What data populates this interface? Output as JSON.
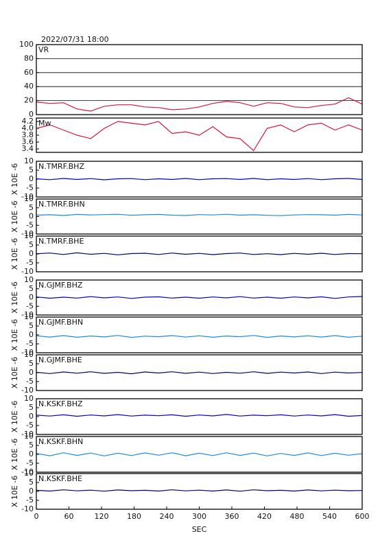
{
  "chart_data": [
    {
      "type": "line",
      "title": "2022/07/31 18:00",
      "xlim": [
        0,
        600
      ],
      "ylim": [
        0,
        100
      ],
      "yticks": [
        0,
        20,
        40,
        60,
        80,
        100
      ],
      "grid": true,
      "x": [
        0,
        25,
        50,
        75,
        100,
        125,
        150,
        175,
        200,
        225,
        250,
        275,
        300,
        325,
        350,
        375,
        400,
        425,
        450,
        475,
        500,
        525,
        550,
        575,
        600
      ],
      "series": [
        {
          "name": "VR",
          "color": "#dc143c",
          "values": [
            18,
            16,
            17,
            8,
            5,
            12,
            14,
            14,
            11,
            10,
            7,
            8,
            11,
            16,
            19,
            17,
            12,
            17,
            16,
            11,
            10,
            13,
            15,
            24,
            15
          ]
        }
      ]
    },
    {
      "type": "line",
      "xlim": [
        0,
        600
      ],
      "ylim": [
        3.3,
        4.3
      ],
      "yticks": [
        3.4,
        3.6,
        3.8,
        {
          "value": 4,
          "label": "4.0"
        },
        4.2
      ],
      "x": [
        0,
        25,
        50,
        75,
        100,
        125,
        150,
        175,
        200,
        225,
        250,
        275,
        300,
        325,
        350,
        375,
        400,
        425,
        450,
        475,
        500,
        525,
        550,
        575,
        600
      ],
      "series": [
        {
          "name": "Mw",
          "color": "#dc143c",
          "values": [
            4.0,
            4.1,
            3.95,
            3.8,
            3.7,
            4.0,
            4.2,
            4.15,
            4.1,
            4.2,
            3.85,
            3.9,
            3.8,
            4.05,
            3.75,
            3.7,
            3.35,
            4.0,
            4.1,
            3.9,
            4.1,
            4.15,
            3.95,
            4.1,
            3.95
          ]
        }
      ]
    },
    {
      "type": "line",
      "xlim": [
        0,
        600
      ],
      "ylim": [
        -10,
        10
      ],
      "yticks": [
        -10,
        -5,
        0,
        5,
        10
      ],
      "ylabel": "X 10E -6",
      "x": [
        0,
        25,
        50,
        75,
        100,
        125,
        150,
        175,
        200,
        225,
        250,
        275,
        300,
        325,
        350,
        375,
        400,
        425,
        450,
        475,
        500,
        525,
        550,
        575,
        600
      ],
      "series": [
        {
          "name": "N.TMRF.BHZ",
          "color": "#0000cd",
          "values": [
            0.2,
            -0.3,
            0.4,
            -0.2,
            0.3,
            -0.4,
            0.2,
            0.3,
            -0.3,
            0.2,
            -0.2,
            0.4,
            -0.3,
            0.2,
            0.3,
            -0.2,
            0.4,
            -0.3,
            0.2,
            -0.2,
            0.3,
            -0.3,
            0.2,
            0.4,
            -0.2
          ]
        }
      ]
    },
    {
      "type": "line",
      "xlim": [
        0,
        600
      ],
      "ylim": [
        -10,
        10
      ],
      "yticks": [
        -10,
        -5,
        0,
        5,
        10
      ],
      "ylabel": "X 10E -6",
      "x": [
        0,
        25,
        50,
        75,
        100,
        125,
        150,
        175,
        200,
        225,
        250,
        275,
        300,
        325,
        350,
        375,
        400,
        425,
        450,
        475,
        500,
        525,
        550,
        575,
        600
      ],
      "series": [
        {
          "name": "N.TMRF.BHN",
          "color": "#1e88e5",
          "values": [
            0.8,
            1.0,
            0.6,
            1.2,
            0.9,
            1.1,
            1.3,
            0.7,
            1.0,
            1.2,
            0.8,
            0.6,
            1.1,
            0.9,
            1.3,
            0.8,
            1.0,
            0.7,
            0.5,
            0.9,
            1.1,
            1.0,
            0.8,
            1.2,
            0.9
          ]
        }
      ]
    },
    {
      "type": "line",
      "xlim": [
        0,
        600
      ],
      "ylim": [
        -10,
        10
      ],
      "yticks": [
        -10,
        -5,
        0,
        5,
        10
      ],
      "ylabel": "X 10E -6",
      "x": [
        0,
        25,
        50,
        75,
        100,
        125,
        150,
        175,
        200,
        225,
        250,
        275,
        300,
        325,
        350,
        375,
        400,
        425,
        450,
        475,
        500,
        525,
        550,
        575,
        600
      ],
      "series": [
        {
          "name": "N.TMRF.BHE",
          "color": "#000066",
          "values": [
            0.1,
            0.5,
            -0.3,
            0.6,
            -0.2,
            0.3,
            -0.5,
            0.2,
            0.4,
            -0.3,
            0.5,
            -0.2,
            0.3,
            -0.4,
            0.2,
            0.5,
            -0.3,
            0.1,
            -0.4,
            0.3,
            -0.2,
            0.4,
            -0.3,
            0.2,
            0.1
          ]
        }
      ]
    },
    {
      "type": "line",
      "xlim": [
        0,
        600
      ],
      "ylim": [
        -10,
        10
      ],
      "yticks": [
        -10,
        -5,
        0,
        5,
        10
      ],
      "ylabel": "X 10E -6",
      "x": [
        0,
        25,
        50,
        75,
        100,
        125,
        150,
        175,
        200,
        225,
        250,
        275,
        300,
        325,
        350,
        375,
        400,
        425,
        450,
        475,
        500,
        525,
        550,
        575,
        600
      ],
      "series": [
        {
          "name": "N.GJMF.BHZ",
          "color": "#0000cd",
          "values": [
            0.3,
            -0.4,
            0.2,
            -0.3,
            0.5,
            -0.2,
            0.3,
            -0.5,
            0.2,
            0.4,
            -0.3,
            0.2,
            -0.4,
            0.3,
            -0.2,
            0.5,
            -0.3,
            0.2,
            -0.4,
            0.3,
            -0.2,
            0.4,
            -0.5,
            0.3,
            0.6
          ]
        }
      ]
    },
    {
      "type": "line",
      "xlim": [
        0,
        600
      ],
      "ylim": [
        -10,
        10
      ],
      "yticks": [
        -10,
        -5,
        0,
        5,
        10
      ],
      "ylabel": "X 10E -6",
      "x": [
        0,
        25,
        50,
        75,
        100,
        125,
        150,
        175,
        200,
        225,
        250,
        275,
        300,
        325,
        350,
        375,
        400,
        425,
        450,
        475,
        500,
        525,
        550,
        575,
        600
      ],
      "series": [
        {
          "name": "N.GJMF.BHN",
          "color": "#1e88e5",
          "values": [
            -0.5,
            -1.2,
            -0.4,
            -1.3,
            -0.6,
            -1.1,
            -0.3,
            -1.4,
            -0.7,
            -1.0,
            -0.4,
            -1.2,
            -0.5,
            -1.3,
            -0.6,
            -1.0,
            -0.3,
            -1.4,
            -0.6,
            -1.1,
            -0.5,
            -1.2,
            -0.4,
            -1.3,
            -0.7
          ]
        }
      ]
    },
    {
      "type": "line",
      "xlim": [
        0,
        600
      ],
      "ylim": [
        -10,
        10
      ],
      "yticks": [
        -10,
        -5,
        0,
        5,
        10
      ],
      "ylabel": "X 10E -6",
      "x": [
        0,
        25,
        50,
        75,
        100,
        125,
        150,
        175,
        200,
        225,
        250,
        275,
        300,
        325,
        350,
        375,
        400,
        425,
        450,
        475,
        500,
        525,
        550,
        575,
        600
      ],
      "series": [
        {
          "name": "N.GJMF.BHE",
          "color": "#000066",
          "values": [
            0.2,
            -0.5,
            0.4,
            -0.3,
            0.5,
            -0.4,
            0.2,
            -0.6,
            0.4,
            -0.2,
            0.5,
            -0.4,
            0.3,
            -0.5,
            0.2,
            -0.3,
            0.5,
            -0.4,
            0.3,
            -0.2,
            0.4,
            -0.5,
            0.3,
            -0.2,
            0.1
          ]
        }
      ]
    },
    {
      "type": "line",
      "xlim": [
        0,
        600
      ],
      "ylim": [
        -10,
        10
      ],
      "yticks": [
        -10,
        -5,
        0,
        5,
        10
      ],
      "ylabel": "X 10E -6",
      "x": [
        0,
        25,
        50,
        75,
        100,
        125,
        150,
        175,
        200,
        225,
        250,
        275,
        300,
        325,
        350,
        375,
        400,
        425,
        450,
        475,
        500,
        525,
        550,
        575,
        600
      ],
      "series": [
        {
          "name": "N.KSKF.BHZ",
          "color": "#0000cd",
          "values": [
            0.8,
            0.3,
            1.0,
            0.2,
            0.9,
            0.4,
            1.1,
            0.3,
            0.8,
            0.5,
            1.0,
            0.2,
            0.9,
            0.4,
            1.2,
            0.3,
            0.8,
            0.5,
            1.0,
            0.3,
            0.9,
            0.4,
            1.1,
            0.2,
            0.6
          ]
        }
      ]
    },
    {
      "type": "line",
      "xlim": [
        0,
        600
      ],
      "ylim": [
        -10,
        10
      ],
      "yticks": [
        -10,
        -5,
        0,
        5,
        10
      ],
      "ylabel": "X 10E -6",
      "x": [
        0,
        25,
        50,
        75,
        100,
        125,
        150,
        175,
        200,
        225,
        250,
        275,
        300,
        325,
        350,
        375,
        400,
        425,
        450,
        475,
        500,
        525,
        550,
        575,
        600
      ],
      "series": [
        {
          "name": "N.KSKF.BHN",
          "color": "#1e88e5",
          "values": [
            0.5,
            -0.8,
            0.9,
            -0.6,
            0.7,
            -0.9,
            0.6,
            -0.7,
            0.8,
            -0.5,
            0.9,
            -0.8,
            0.6,
            -0.7,
            0.9,
            -0.6,
            0.7,
            -0.9,
            0.5,
            -0.6,
            0.8,
            -0.7,
            0.6,
            -0.5,
            0.4
          ]
        }
      ]
    },
    {
      "type": "line",
      "xlim": [
        0,
        600
      ],
      "ylim": [
        -10,
        10
      ],
      "yticks": [
        -10,
        -5,
        0,
        5,
        10
      ],
      "ylabel": "X 10E -6",
      "xticks": [
        0,
        60,
        120,
        180,
        240,
        300,
        360,
        420,
        480,
        540,
        600
      ],
      "xlabel": "SEC",
      "x": [
        0,
        25,
        50,
        75,
        100,
        125,
        150,
        175,
        200,
        225,
        250,
        275,
        300,
        325,
        350,
        375,
        400,
        425,
        450,
        475,
        500,
        525,
        550,
        575,
        600
      ],
      "series": [
        {
          "name": "N.KSKF.BHE",
          "color": "#000066",
          "values": [
            0.6,
            0.2,
            0.9,
            0.3,
            0.7,
            0.1,
            0.8,
            0.4,
            0.6,
            0.2,
            0.9,
            0.3,
            0.7,
            0.2,
            0.8,
            0.1,
            0.9,
            0.4,
            0.6,
            0.2,
            0.8,
            0.3,
            0.7,
            0.4,
            0.5
          ]
        }
      ]
    }
  ]
}
